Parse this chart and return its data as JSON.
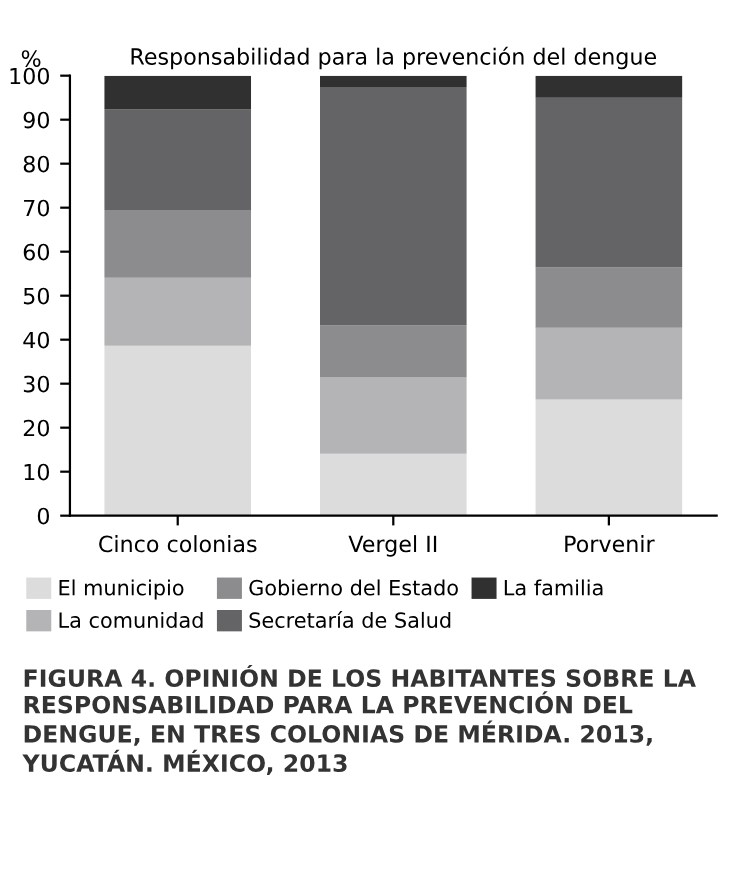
{
  "chart_data": {
    "type": "bar",
    "stacked": true,
    "title": "Responsabilidad para la prevención del dengue",
    "ylabel": "%",
    "categories": [
      "Cinco colonias",
      "Vergel II",
      "Porvenir"
    ],
    "series": [
      {
        "name": "El municipio",
        "color": "#dcdcdc",
        "values": [
          38.6,
          14.1,
          26.4
        ]
      },
      {
        "name": "La comunidad",
        "color": "#b4b4b6",
        "values": [
          15.5,
          17.3,
          16.3
        ]
      },
      {
        "name": "Gobierno del Estado",
        "color": "#8c8c8e",
        "values": [
          15.4,
          11.8,
          13.7
        ]
      },
      {
        "name": "Secretaría de Salud",
        "color": "#646466",
        "values": [
          22.8,
          54.2,
          38.6
        ]
      },
      {
        "name": "La familia",
        "color": "#303030",
        "values": [
          7.7,
          2.6,
          5.0
        ]
      }
    ],
    "ylim": [
      0,
      100
    ],
    "yticks": [
      0,
      10,
      20,
      30,
      40,
      50,
      60,
      70,
      80,
      90,
      100
    ],
    "grid": false,
    "legend": "bottom",
    "annotations": [
      "FIGURA 4. OPINIÓN DE LOS HABITANTES SOBRE LA RESPONSABILIDAD PARA LA PREVENCIÓN DEL DENGUE, EN TRES COLONIAS DE MÉRIDA. 2013, YUCATÁN. MÉXICO, 2013"
    ]
  }
}
